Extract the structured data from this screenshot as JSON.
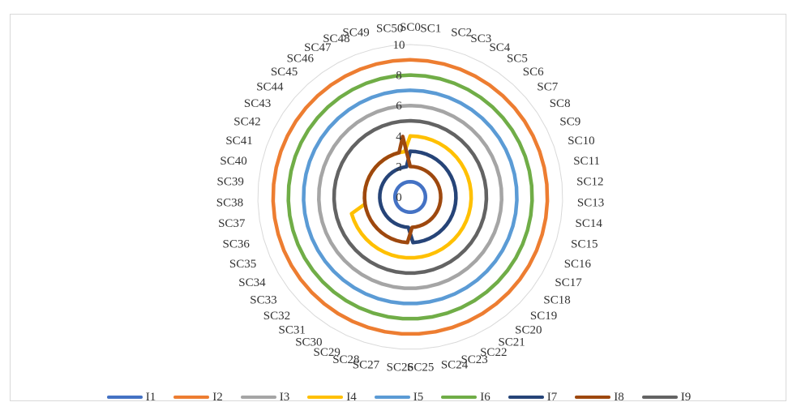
{
  "chart_data": {
    "type": "radar",
    "categories": [
      "SC0",
      "SC1",
      "SC2",
      "SC3",
      "SC4",
      "SC5",
      "SC6",
      "SC7",
      "SC8",
      "SC9",
      "SC10",
      "SC11",
      "SC12",
      "SC13",
      "SC14",
      "SC15",
      "SC16",
      "SC17",
      "SC18",
      "SC19",
      "SC20",
      "SC21",
      "SC22",
      "SC23",
      "SC24",
      "SC25",
      "SC26",
      "SC27",
      "SC28",
      "SC29",
      "SC30",
      "SC31",
      "SC32",
      "SC33",
      "SC34",
      "SC35",
      "SC36",
      "SC37",
      "SC38",
      "SC39",
      "SC40",
      "SC41",
      "SC42",
      "SC43",
      "SC44",
      "SC45",
      "SC46",
      "SC47",
      "SC48",
      "SC49",
      "SC50"
    ],
    "rlim": [
      0,
      10
    ],
    "ticks": [
      0,
      2,
      4,
      6,
      8,
      10
    ],
    "grid": true,
    "legend_position": "bottom",
    "series": [
      {
        "name": "I1",
        "color": "#4472C4",
        "values": [
          1,
          1,
          1,
          1,
          1,
          1,
          1,
          1,
          1,
          1,
          1,
          1,
          1,
          1,
          1,
          1,
          1,
          1,
          1,
          1,
          1,
          1,
          1,
          1,
          1,
          1,
          1,
          1,
          1,
          1,
          1,
          1,
          1,
          1,
          1,
          1,
          1,
          1,
          1,
          1,
          1,
          1,
          1,
          1,
          1,
          1,
          1,
          1,
          1,
          1,
          1
        ]
      },
      {
        "name": "I2",
        "color": "#ED7D31",
        "values": [
          9,
          9,
          9,
          9,
          9,
          9,
          9,
          9,
          9,
          9,
          9,
          9,
          9,
          9,
          9,
          9,
          9,
          9,
          9,
          9,
          9,
          9,
          9,
          9,
          9,
          9,
          9,
          9,
          9,
          9,
          9,
          9,
          9,
          9,
          9,
          9,
          9,
          9,
          9,
          9,
          9,
          9,
          9,
          9,
          9,
          9,
          9,
          9,
          9,
          9,
          9
        ]
      },
      {
        "name": "I3",
        "color": "#A5A5A5",
        "values": [
          6,
          6,
          6,
          6,
          6,
          6,
          6,
          6,
          6,
          6,
          6,
          6,
          6,
          6,
          6,
          6,
          6,
          6,
          6,
          6,
          6,
          6,
          6,
          6,
          6,
          6,
          6,
          6,
          6,
          6,
          6,
          6,
          6,
          6,
          6,
          6,
          6,
          6,
          6,
          6,
          6,
          6,
          6,
          6,
          6,
          6,
          6,
          6,
          6,
          6,
          6
        ]
      },
      {
        "name": "I4",
        "color": "#FFC000",
        "values": [
          4,
          4,
          4,
          4,
          4,
          4,
          4,
          4,
          4,
          4,
          4,
          4,
          4,
          4,
          4,
          4,
          4,
          4,
          4,
          4,
          4,
          4,
          4,
          4,
          4,
          4,
          4,
          4,
          4,
          4,
          4,
          4,
          4,
          4,
          4,
          4,
          4,
          3,
          3,
          3,
          3,
          3,
          3,
          3,
          3,
          3,
          3,
          3,
          3,
          3,
          3
        ]
      },
      {
        "name": "I5",
        "color": "#5B9BD5",
        "values": [
          7,
          7,
          7,
          7,
          7,
          7,
          7,
          7,
          7,
          7,
          7,
          7,
          7,
          7,
          7,
          7,
          7,
          7,
          7,
          7,
          7,
          7,
          7,
          7,
          7,
          7,
          7,
          7,
          7,
          7,
          7,
          7,
          7,
          7,
          7,
          7,
          7,
          7,
          7,
          7,
          7,
          7,
          7,
          7,
          7,
          7,
          7,
          7,
          7,
          7,
          7
        ]
      },
      {
        "name": "I6",
        "color": "#70AD47",
        "values": [
          8,
          8,
          8,
          8,
          8,
          8,
          8,
          8,
          8,
          8,
          8,
          8,
          8,
          8,
          8,
          8,
          8,
          8,
          8,
          8,
          8,
          8,
          8,
          8,
          8,
          8,
          8,
          8,
          8,
          8,
          8,
          8,
          8,
          8,
          8,
          8,
          8,
          8,
          8,
          8,
          8,
          8,
          8,
          8,
          8,
          8,
          8,
          8,
          8,
          8,
          8
        ]
      },
      {
        "name": "I7",
        "color": "#264478",
        "values": [
          3,
          3,
          3,
          3,
          3,
          3,
          3,
          3,
          3,
          3,
          3,
          3,
          3,
          3,
          3,
          3,
          3,
          3,
          3,
          3,
          3,
          3,
          3,
          3,
          3,
          3,
          2,
          2,
          2,
          2,
          2,
          2,
          2,
          2,
          2,
          2,
          2,
          2,
          2,
          2,
          2,
          2,
          2,
          2,
          2,
          2,
          2,
          2,
          2,
          2,
          2
        ]
      },
      {
        "name": "I8",
        "color": "#9E480E",
        "values": [
          2,
          2,
          2,
          2,
          2,
          2,
          2,
          2,
          2,
          2,
          2,
          2,
          2,
          2,
          2,
          2,
          2,
          2,
          2,
          2,
          2,
          2,
          2,
          2,
          2,
          2,
          3,
          3,
          3,
          3,
          3,
          3,
          3,
          3,
          3,
          3,
          3,
          3,
          3,
          3,
          3,
          3,
          3,
          3,
          3,
          3,
          3,
          3,
          3,
          3,
          4
        ]
      },
      {
        "name": "I9",
        "color": "#636363",
        "values": [
          5,
          5,
          5,
          5,
          5,
          5,
          5,
          5,
          5,
          5,
          5,
          5,
          5,
          5,
          5,
          5,
          5,
          5,
          5,
          5,
          5,
          5,
          5,
          5,
          5,
          5,
          5,
          5,
          5,
          5,
          5,
          5,
          5,
          5,
          5,
          5,
          5,
          5,
          5,
          5,
          5,
          5,
          5,
          5,
          5,
          5,
          5,
          5,
          5,
          5,
          5
        ]
      }
    ]
  }
}
